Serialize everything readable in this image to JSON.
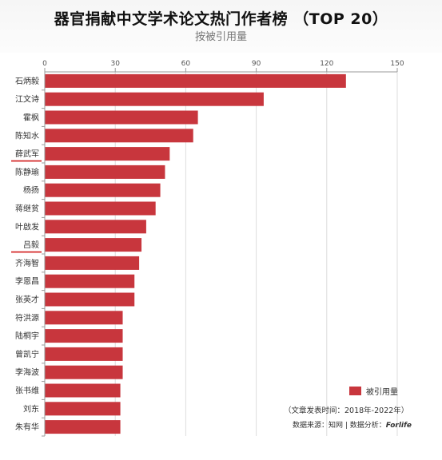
{
  "header": {
    "title": "器官捐献中文学术论文热门作者榜 （TOP 20）",
    "subtitle": "按被引用量"
  },
  "legend": {
    "label": "被引用量"
  },
  "footer": {
    "note": "（文章发表时间：2018年-2022年）",
    "source": "数据来源：知网 | 数据分析：",
    "source_logo": "Forlife"
  },
  "colors": {
    "bar": "#c8363d",
    "highlight_underline": "#d11a1a"
  },
  "chart_data": {
    "type": "bar",
    "orientation": "horizontal",
    "x_axis_position": "top",
    "title": "器官捐献中文学术论文热门作者榜 （TOP 20）",
    "subtitle": "按被引用量",
    "xlabel": "",
    "ylabel": "",
    "xlim": [
      0,
      150
    ],
    "ticks": [
      0,
      30,
      60,
      90,
      120,
      150
    ],
    "categories": [
      "石炳毅",
      "江文诗",
      "霍枫",
      "陈知水",
      "薛武军",
      "陈静瑜",
      "杨扬",
      "蒋继贫",
      "叶啟发",
      "吕毅",
      "齐海智",
      "李恩昌",
      "张英才",
      "符洪源",
      "陆桐宇",
      "曾凯宁",
      "李海波",
      "张书维",
      "刘东",
      "朱有华"
    ],
    "series": [
      {
        "name": "被引用量",
        "values": [
          128,
          93,
          65,
          63,
          53,
          51,
          49,
          47,
          43,
          41,
          40,
          38,
          38,
          33,
          33,
          33,
          33,
          32,
          32,
          32
        ]
      }
    ],
    "highlighted": [
      "薛武军",
      "吕毅"
    ],
    "legend": "bottom-right",
    "grid": true
  }
}
